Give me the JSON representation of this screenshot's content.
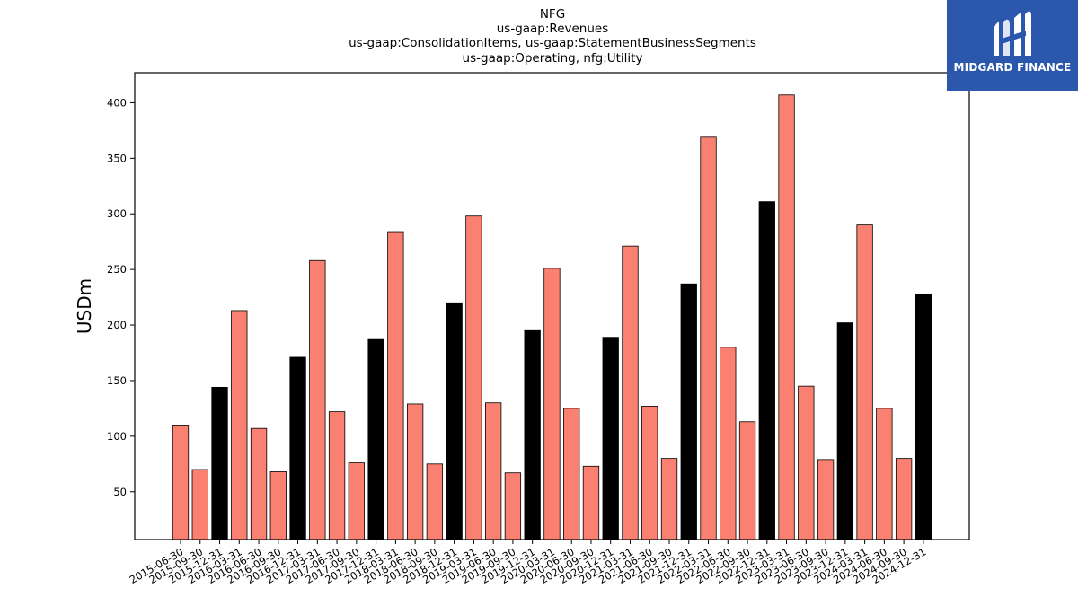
{
  "chart_data": {
    "type": "bar",
    "title_lines": [
      "NFG",
      "us-gaap:Revenues",
      "us-gaap:ConsolidationItems, us-gaap:StatementBusinessSegments",
      "us-gaap:Operating, nfg:Utility"
    ],
    "ylabel": "USDm",
    "xlabel": "",
    "ylim": [
      7,
      427
    ],
    "yticks": [
      50,
      100,
      150,
      200,
      250,
      300,
      350,
      400
    ],
    "grid": false,
    "categories": [
      "2015-06-30",
      "2015-09-30",
      "2015-12-31",
      "2016-03-31",
      "2016-06-30",
      "2016-09-30",
      "2016-12-31",
      "2017-03-31",
      "2017-06-30",
      "2017-09-30",
      "2017-12-31",
      "2018-03-31",
      "2018-06-30",
      "2018-09-30",
      "2018-12-31",
      "2019-03-31",
      "2019-06-30",
      "2019-09-30",
      "2019-12-31",
      "2020-03-31",
      "2020-06-30",
      "2020-09-30",
      "2020-12-31",
      "2021-03-31",
      "2021-06-30",
      "2021-09-30",
      "2021-12-31",
      "2022-03-31",
      "2022-06-30",
      "2022-09-30",
      "2022-12-31",
      "2023-03-31",
      "2023-06-30",
      "2023-09-30",
      "2023-12-31",
      "2024-03-31",
      "2024-06-30",
      "2024-09-30",
      "2024-12-31"
    ],
    "values": [
      110,
      70,
      144,
      213,
      107,
      68,
      171,
      258,
      122,
      76,
      187,
      284,
      129,
      75,
      220,
      298,
      130,
      67,
      195,
      251,
      125,
      73,
      189,
      271,
      127,
      80,
      237,
      369,
      180,
      113,
      311,
      407,
      145,
      79,
      202,
      290,
      125,
      80,
      228
    ],
    "colors": {
      "quarter": "#fa8072",
      "year_end": "#000000",
      "edge": "#000000"
    }
  },
  "logo": {
    "text": "MIDGARD FINANCE",
    "icon": "midgard-logo-icon"
  }
}
